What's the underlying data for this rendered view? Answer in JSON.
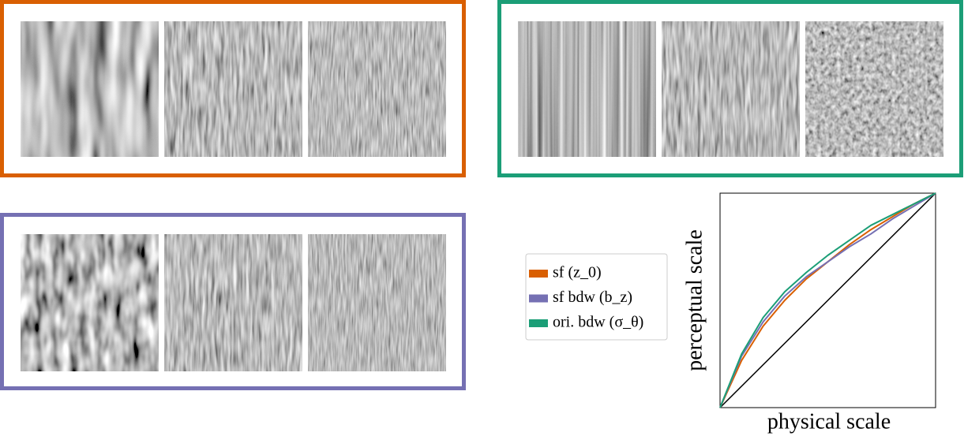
{
  "chart_data": {
    "type": "line",
    "x_label": "physical scale",
    "y_label": "perceptual scale",
    "x": [
      0,
      0.1,
      0.2,
      0.3,
      0.4,
      0.5,
      0.6,
      0.7,
      0.8,
      0.9,
      1
    ],
    "series": [
      {
        "name": "sf (z_0)",
        "color": "#d95f02",
        "values": [
          0,
          0.22,
          0.38,
          0.5,
          0.6,
          0.68,
          0.76,
          0.83,
          0.89,
          0.95,
          1
        ]
      },
      {
        "name": "sf bdw (b_z)",
        "color": "#7570b3",
        "values": [
          0,
          0.24,
          0.4,
          0.52,
          0.61,
          0.68,
          0.75,
          0.81,
          0.88,
          0.94,
          1
        ]
      },
      {
        "name": "ori. bdw (σ_θ)",
        "color": "#1b9e77",
        "values": [
          0,
          0.25,
          0.42,
          0.54,
          0.63,
          0.71,
          0.78,
          0.85,
          0.9,
          0.95,
          1
        ]
      }
    ],
    "xlim": [
      0,
      1
    ],
    "ylim": [
      0,
      1
    ]
  }
}
